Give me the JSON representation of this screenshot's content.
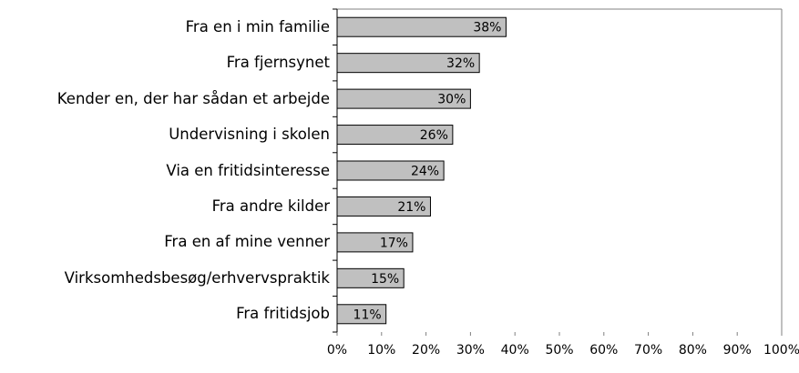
{
  "chart_data": {
    "type": "barh",
    "categories": [
      "Fra en i min familie",
      "Fra fjernsynet",
      "Kender en, der har sådan et arbejde",
      "Undervisning i skolen",
      "Via en fritidsinteresse",
      "Fra andre kilder",
      "Fra en af mine venner",
      "Virksomhedsbesøg/erhvervspraktik",
      "Fra fritidsjob"
    ],
    "values": [
      38,
      32,
      30,
      26,
      24,
      21,
      17,
      15,
      11
    ],
    "value_labels": [
      "38%",
      "32%",
      "30%",
      "26%",
      "24%",
      "21%",
      "17%",
      "15%",
      "11%"
    ],
    "color": "#c0c0c0",
    "xlim": [
      0,
      100
    ],
    "xticks": [
      {
        "value": 0,
        "label": "0%"
      },
      {
        "value": 10,
        "label": "10%"
      },
      {
        "value": 20,
        "label": "20%"
      },
      {
        "value": 30,
        "label": "30%"
      },
      {
        "value": 40,
        "label": "40%"
      },
      {
        "value": 50,
        "label": "50%"
      },
      {
        "value": 60,
        "label": "60%"
      },
      {
        "value": 70,
        "label": "70%"
      },
      {
        "value": 80,
        "label": "80%"
      },
      {
        "value": 90,
        "label": "90%"
      },
      {
        "value": 100,
        "label": "100%"
      }
    ]
  }
}
